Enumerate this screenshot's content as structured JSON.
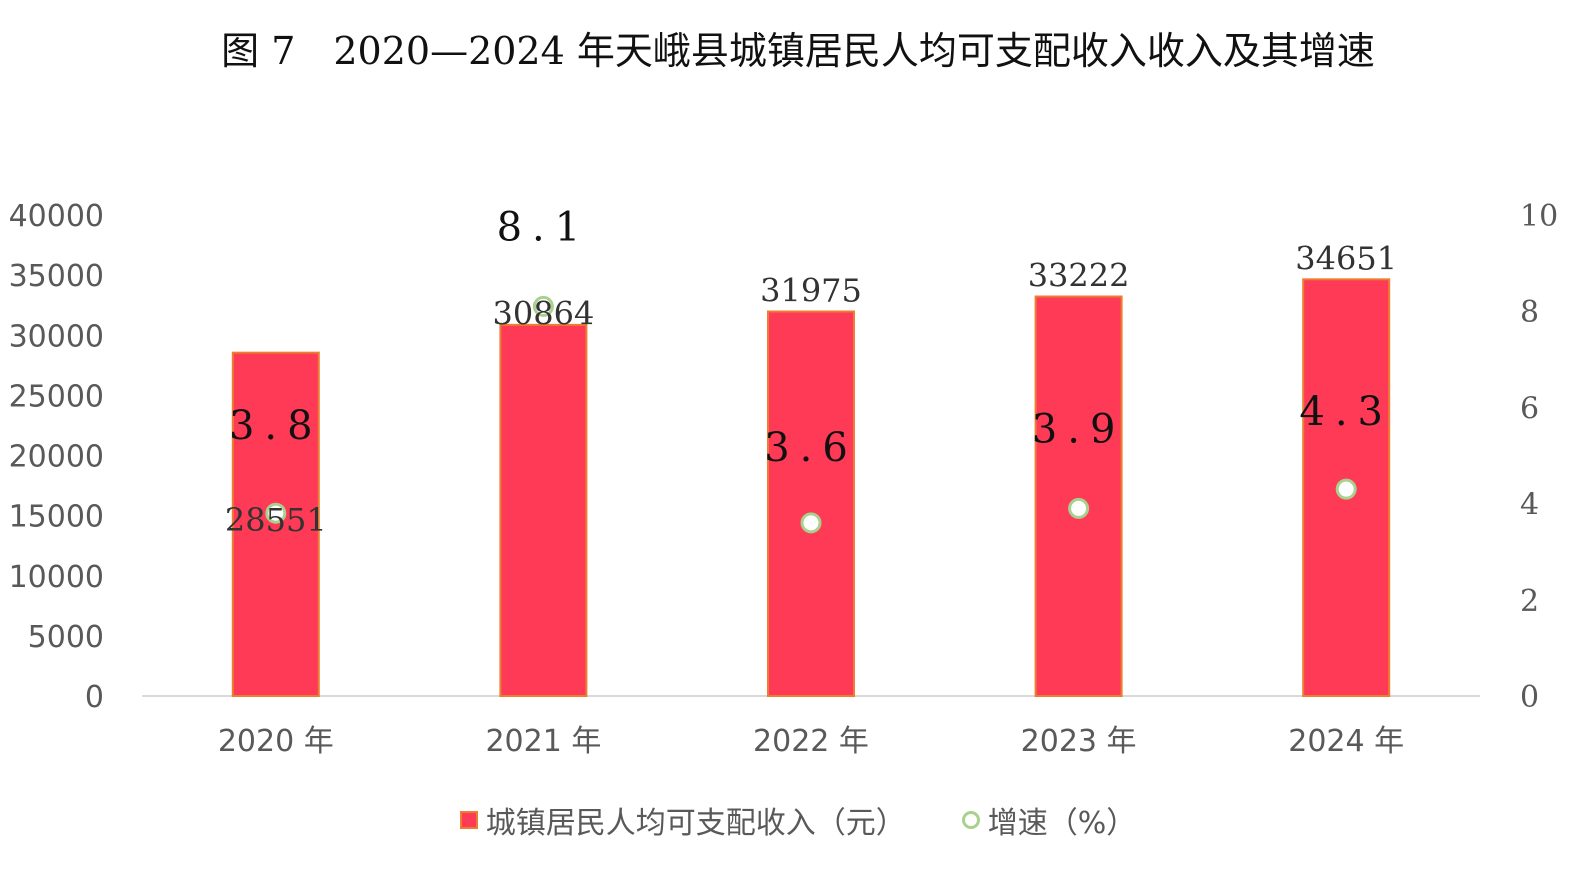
{
  "chart_data": {
    "type": "bar",
    "title": "图 7　2020—2024 年天峨县城镇居民人均可支配收入收入及其增速",
    "categories": [
      "2020 年",
      "2021 年",
      "2022 年",
      "2023 年",
      "2024 年"
    ],
    "series": [
      {
        "name": "城镇居民人均可支配收入（元）",
        "type": "bar",
        "axis": "left",
        "values": [
          28551,
          30864,
          31975,
          33222,
          34651
        ],
        "labels": [
          "28551",
          "30864",
          "31975",
          "33222",
          "34651"
        ],
        "color": "#FF3A57",
        "border_color": "#ED7D31"
      },
      {
        "name": "增速（%）",
        "type": "scatter",
        "axis": "right",
        "values": [
          3.8,
          8.1,
          3.6,
          3.9,
          4.3
        ],
        "labels": [
          "3.8",
          "8.1",
          "3.6",
          "3.9",
          "4.3"
        ],
        "marker_color": "#A9D18E"
      }
    ],
    "left_axis": {
      "ylim": [
        0,
        40000
      ],
      "ticks": [
        "0",
        "5000",
        "10000",
        "15000",
        "20000",
        "25000",
        "30000",
        "35000",
        "40000"
      ]
    },
    "right_axis": {
      "ylim": [
        0,
        10
      ],
      "ticks": [
        "0",
        "2",
        "4",
        "6",
        "8",
        "10"
      ]
    },
    "grid": false,
    "legend_position": "bottom"
  }
}
